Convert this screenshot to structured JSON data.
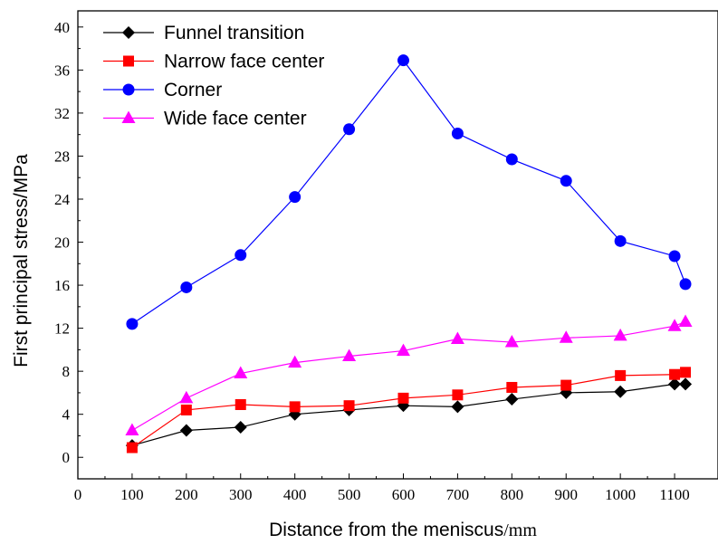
{
  "chart_data": {
    "type": "line",
    "xlabel": "Distance from the meniscus",
    "xlabel_unit": "/mm",
    "ylabel": "First principal stress/MPa",
    "xlim": [
      0,
      1180
    ],
    "ylim": [
      -2,
      41.5
    ],
    "xticks": [
      0,
      100,
      200,
      300,
      400,
      500,
      600,
      700,
      800,
      900,
      1000,
      1100
    ],
    "yticks": [
      0,
      4,
      8,
      12,
      16,
      20,
      24,
      28,
      32,
      36,
      40
    ],
    "grid": false,
    "legend_position": "top-left",
    "x": [
      100,
      200,
      300,
      400,
      500,
      600,
      700,
      800,
      900,
      1000,
      1100,
      1120
    ],
    "series": [
      {
        "name": "Funnel transition",
        "color": "#000000",
        "marker": "diamond",
        "values": [
          1.1,
          2.5,
          2.8,
          4.0,
          4.4,
          4.8,
          4.7,
          5.4,
          6.0,
          6.1,
          6.8,
          6.8
        ]
      },
      {
        "name": "Narrow face center",
        "color": "#ff0000",
        "marker": "square",
        "values": [
          0.9,
          4.4,
          4.9,
          4.7,
          4.8,
          5.5,
          5.8,
          6.5,
          6.7,
          7.6,
          7.7,
          7.9
        ]
      },
      {
        "name": "Corner",
        "color": "#0000ff",
        "marker": "circle",
        "values": [
          12.4,
          15.8,
          18.8,
          24.2,
          30.5,
          36.9,
          30.1,
          27.7,
          25.7,
          20.1,
          18.7,
          16.1
        ]
      },
      {
        "name": "Wide face center",
        "color": "#ff00ff",
        "marker": "triangle",
        "values": [
          2.5,
          5.5,
          7.8,
          8.8,
          9.4,
          9.9,
          11.0,
          10.7,
          11.1,
          11.3,
          12.2,
          12.6
        ]
      }
    ]
  }
}
